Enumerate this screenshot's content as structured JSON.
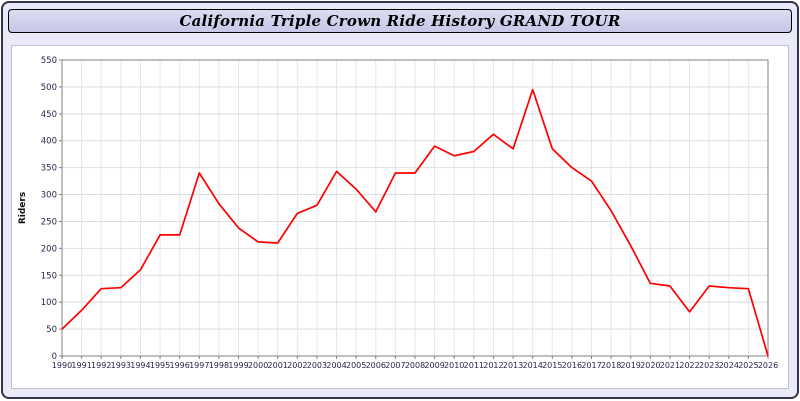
{
  "page": {
    "title": "California Triple Crown Ride History GRAND TOUR"
  },
  "colors": {
    "line": "#ff0000",
    "grid": "#dedede",
    "axis": "#808080",
    "tick_text": "#26264d",
    "header_bg": "#cfcfec",
    "page_bg": "#e9e9f7"
  },
  "chart_data": {
    "type": "line",
    "title": "California Triple Crown Ride History GRAND TOUR",
    "xlabel": "",
    "ylabel": "Riders",
    "ylim": [
      0,
      550
    ],
    "ytick_step": 50,
    "grid": true,
    "legend_position": "none",
    "series_name": "Riders",
    "categories": [
      1990,
      1991,
      1992,
      1993,
      1994,
      1995,
      1996,
      1997,
      1998,
      1999,
      2000,
      2001,
      2002,
      2003,
      2004,
      2005,
      2006,
      2007,
      2008,
      2009,
      2010,
      2011,
      2012,
      2013,
      2014,
      2015,
      2016,
      2017,
      2018,
      2019,
      2020,
      2021,
      2022,
      2023,
      2024,
      2025,
      2026
    ],
    "values": [
      50,
      85,
      125,
      127,
      160,
      225,
      225,
      340,
      283,
      238,
      212,
      210,
      265,
      280,
      343,
      310,
      268,
      340,
      340,
      390,
      372,
      380,
      412,
      385,
      495,
      385,
      350,
      325,
      270,
      205,
      135,
      130,
      82,
      130,
      127,
      125,
      0
    ]
  }
}
